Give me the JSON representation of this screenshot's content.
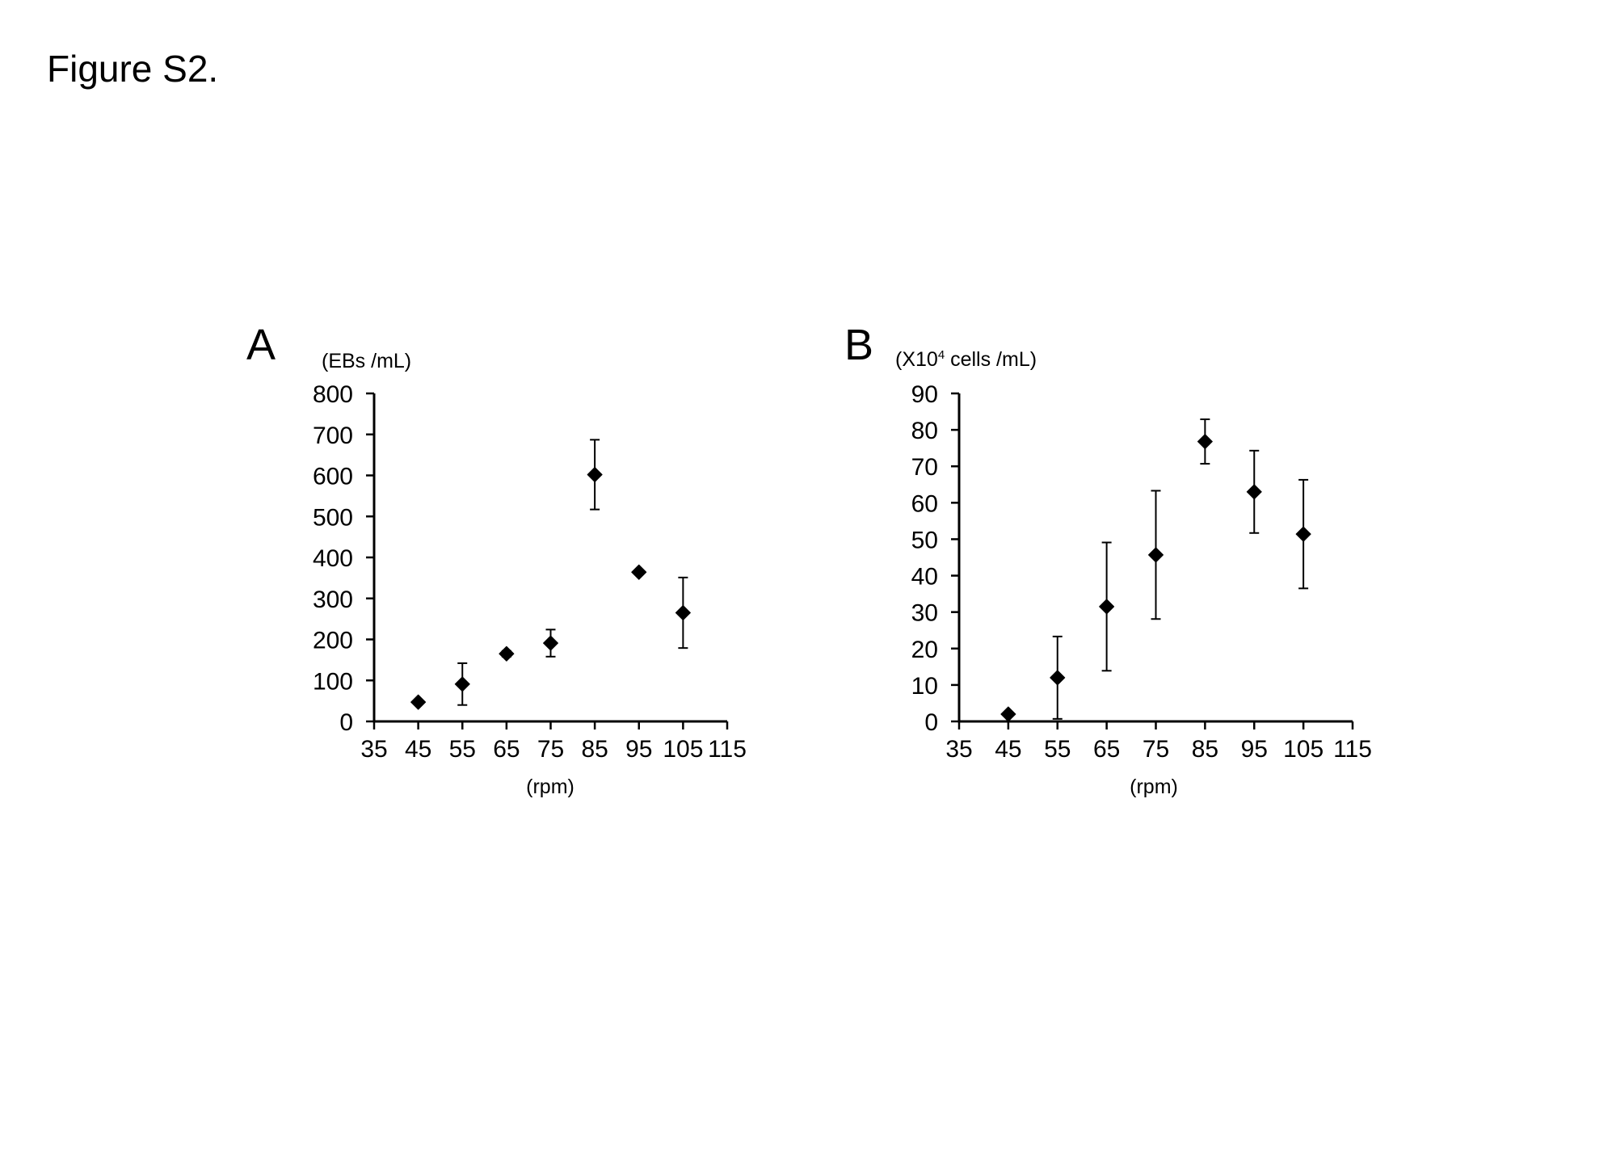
{
  "figure": {
    "title": "Figure S2."
  },
  "colors": {
    "ink": "#000000",
    "background": "#ffffff"
  },
  "chart_data": [
    {
      "id": "A",
      "type": "scatter",
      "panel_label": "A",
      "title": "",
      "ylabel": "(EBs /mL)",
      "xlabel": "(rpm)",
      "xlim": [
        35,
        115
      ],
      "ylim": [
        0,
        800
      ],
      "xticks": [
        35,
        45,
        55,
        65,
        75,
        85,
        95,
        105,
        115
      ],
      "yticks": [
        0,
        100,
        200,
        300,
        400,
        500,
        600,
        700,
        800
      ],
      "grid": false,
      "legend": "none",
      "marker": "diamond",
      "series": [
        {
          "name": "EBs",
          "x": [
            45,
            55,
            65,
            75,
            85,
            95,
            105
          ],
          "y": [
            47,
            91,
            165,
            191,
            602,
            364,
            265
          ],
          "err": [
            5,
            51,
            7,
            33,
            85,
            5,
            86
          ]
        }
      ]
    },
    {
      "id": "B",
      "type": "scatter",
      "panel_label": "B",
      "title": "",
      "ylabel_prefix": "(X10",
      "ylabel_sup": "4",
      "ylabel_suffix": " cells /mL)",
      "xlabel": "(rpm)",
      "xlim": [
        35,
        115
      ],
      "ylim": [
        0,
        90
      ],
      "xticks": [
        35,
        45,
        55,
        65,
        75,
        85,
        95,
        105,
        115
      ],
      "yticks": [
        0,
        10,
        20,
        30,
        40,
        50,
        60,
        70,
        80,
        90
      ],
      "grid": false,
      "legend": "none",
      "marker": "diamond",
      "series": [
        {
          "name": "cells",
          "x": [
            45,
            55,
            65,
            75,
            85,
            95,
            105
          ],
          "y": [
            2,
            12,
            31.5,
            45.7,
            76.8,
            63,
            51.4
          ],
          "err": [
            0.5,
            11.3,
            17.6,
            17.6,
            6.1,
            11.3,
            14.9
          ]
        }
      ]
    }
  ]
}
